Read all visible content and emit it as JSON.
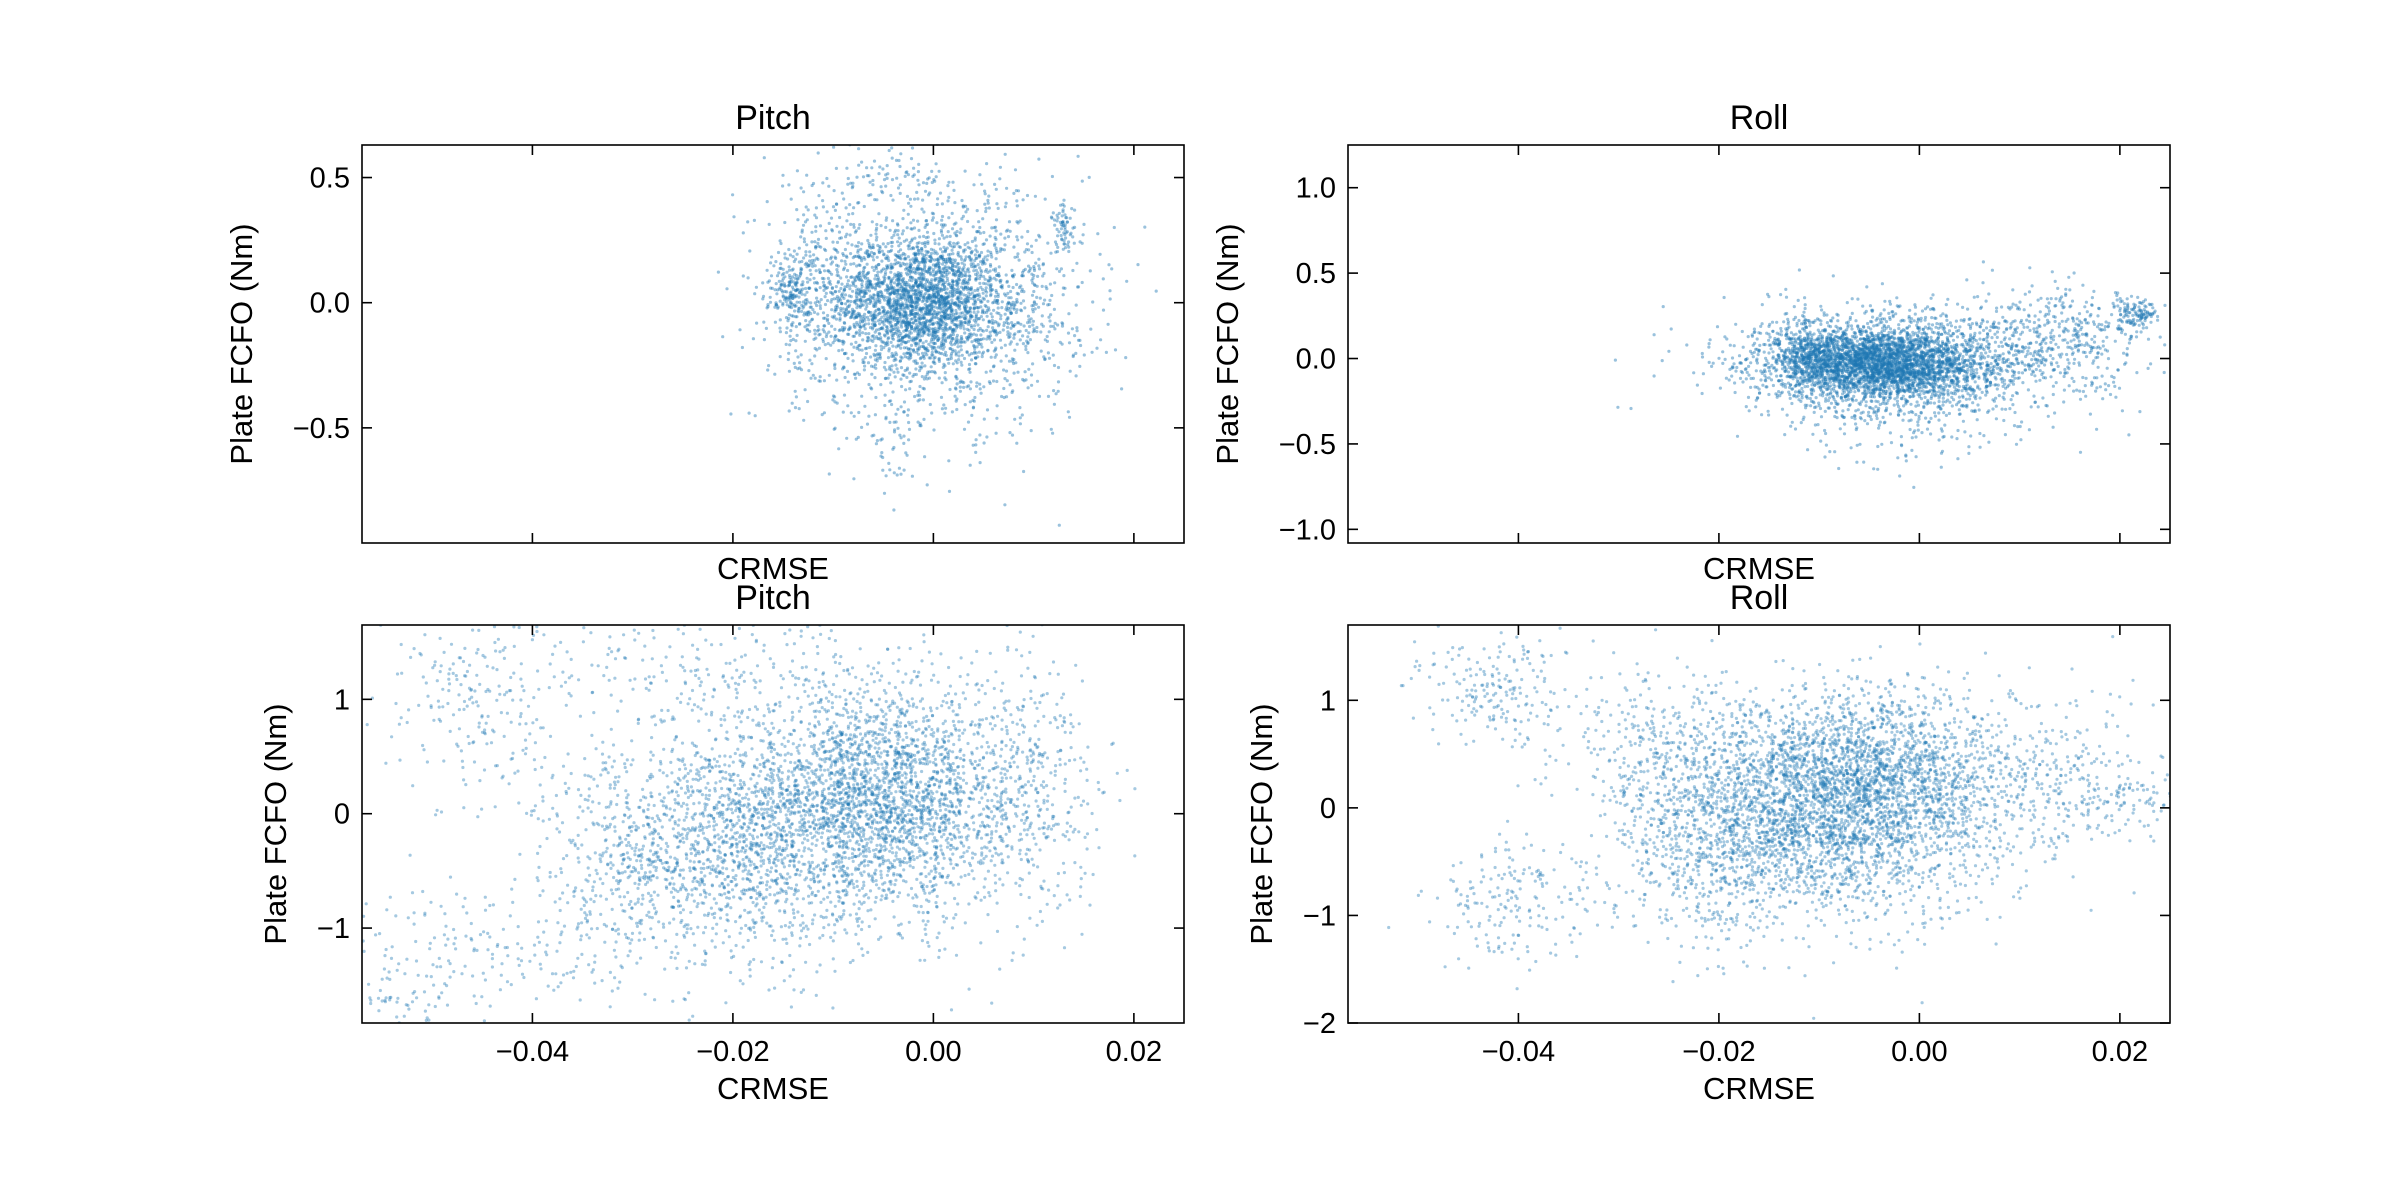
{
  "colors": {
    "marker": "#1f77b4",
    "axes": "#000000",
    "background": "#ffffff"
  },
  "chart_data": [
    {
      "id": "pitch-top",
      "type": "scatter",
      "title": "Pitch",
      "xlabel": "CRMSE",
      "ylabel": "Plate FCFO (Nm)",
      "xlim": [
        -0.057,
        0.025
      ],
      "ylim": [
        -0.96,
        0.63
      ],
      "xticks": [
        -0.04,
        -0.02,
        0.0,
        0.02
      ],
      "xticklabels": [],
      "yticks": [
        -0.5,
        0.0,
        0.5
      ],
      "yticklabels": [
        "−0.5",
        "0.0",
        "0.5"
      ],
      "grid": false,
      "series": [
        {
          "density": "dense",
          "clusters": [
            {
              "cx": -0.0015,
              "cy": 0.0,
              "sx": 0.004,
              "sy": 0.13,
              "n": 1900
            },
            {
              "cx": 0.001,
              "cy": 0.0,
              "sx": 0.007,
              "sy": 0.26,
              "n": 1100
            },
            {
              "cx": -0.011,
              "cy": 0.07,
              "sx": 0.003,
              "sy": 0.22,
              "n": 350
            },
            {
              "cx": -0.014,
              "cy": 0.05,
              "sx": 0.0012,
              "sy": 0.08,
              "n": 180
            },
            {
              "cx": 0.0085,
              "cy": -0.05,
              "sx": 0.003,
              "sy": 0.18,
              "n": 220
            },
            {
              "cx": 0.013,
              "cy": 0.3,
              "sx": 0.0006,
              "sy": 0.05,
              "n": 60
            },
            {
              "cx": -0.004,
              "cy": -0.55,
              "sx": 0.0015,
              "sy": 0.12,
              "n": 40
            },
            {
              "cx": -0.005,
              "cy": 0.5,
              "sx": 0.0025,
              "sy": 0.05,
              "n": 50
            }
          ]
        }
      ]
    },
    {
      "id": "roll-top",
      "type": "scatter",
      "title": "Roll",
      "xlabel": "CRMSE",
      "ylabel": "Plate FCFO (Nm)",
      "xlim": [
        -0.057,
        0.025
      ],
      "ylim": [
        -1.08,
        1.25
      ],
      "xticks": [
        -0.04,
        -0.02,
        0.0,
        0.02
      ],
      "xticklabels": [],
      "yticks": [
        -1.0,
        -0.5,
        0.0,
        0.5,
        1.0
      ],
      "yticklabels": [
        "−1.0",
        "−0.5",
        "0.0",
        "0.5",
        "1.0"
      ],
      "grid": false,
      "series": [
        {
          "density": "dense",
          "clusters": [
            {
              "cx": -0.004,
              "cy": -0.03,
              "sx": 0.005,
              "sy": 0.1,
              "n": 2600
            },
            {
              "cx": -0.001,
              "cy": -0.02,
              "sx": 0.009,
              "sy": 0.17,
              "n": 1500
            },
            {
              "cx": -0.011,
              "cy": 0.02,
              "sx": 0.002,
              "sy": 0.1,
              "n": 300
            },
            {
              "cx": 0.015,
              "cy": 0.12,
              "sx": 0.004,
              "sy": 0.14,
              "n": 300
            },
            {
              "cx": 0.0215,
              "cy": 0.27,
              "sx": 0.0012,
              "sy": 0.05,
              "n": 120
            },
            {
              "cx": -0.002,
              "cy": -0.35,
              "sx": 0.005,
              "sy": 0.15,
              "n": 150
            }
          ]
        }
      ]
    },
    {
      "id": "pitch-bottom",
      "type": "scatter",
      "title": "Pitch",
      "xlabel": "CRMSE",
      "ylabel": "Plate FCFO (Nm)",
      "xlim": [
        -0.057,
        0.025
      ],
      "ylim": [
        -1.83,
        1.65
      ],
      "xticks": [
        -0.04,
        -0.02,
        0.0,
        0.02
      ],
      "xticklabels": [
        "−0.04",
        "−0.02",
        "0.00",
        "0.02"
      ],
      "yticks": [
        -1,
        0,
        1
      ],
      "yticklabels": [
        "−1",
        "0",
        "1"
      ],
      "grid": false,
      "series": [
        {
          "density": "trajectories",
          "clusters": [
            {
              "cx": -0.01,
              "cy": 0.0,
              "sx": 0.01,
              "sy": 0.55,
              "n": 2200
            },
            {
              "cx": -0.004,
              "cy": 0.2,
              "sx": 0.006,
              "sy": 0.45,
              "n": 1300
            },
            {
              "cx": -0.022,
              "cy": -0.4,
              "sx": 0.007,
              "sy": 0.45,
              "n": 700
            },
            {
              "cx": -0.03,
              "cy": -0.6,
              "sx": 0.006,
              "sy": 0.5,
              "n": 260
            },
            {
              "cx": -0.045,
              "cy": 0.9,
              "sx": 0.005,
              "sy": 0.45,
              "n": 200
            },
            {
              "cx": -0.044,
              "cy": -1.2,
              "sx": 0.007,
              "sy": 0.3,
              "n": 150
            },
            {
              "cx": 0.01,
              "cy": 0.3,
              "sx": 0.003,
              "sy": 0.55,
              "n": 250
            },
            {
              "cx": -0.025,
              "cy": 1.3,
              "sx": 0.012,
              "sy": 0.2,
              "n": 200
            },
            {
              "cx": -0.053,
              "cy": -1.6,
              "sx": 0.003,
              "sy": 0.15,
              "n": 50
            }
          ]
        }
      ]
    },
    {
      "id": "roll-bottom",
      "type": "scatter",
      "title": "Roll",
      "xlabel": "CRMSE",
      "ylabel": "Plate FCFO (Nm)",
      "xlim": [
        -0.057,
        0.025
      ],
      "ylim": [
        -2.0,
        1.7
      ],
      "xticks": [
        -0.04,
        -0.02,
        0.0,
        0.02
      ],
      "xticklabels": [
        "−0.04",
        "−0.02",
        "0.00",
        "0.02"
      ],
      "yticks": [
        -2,
        -1,
        0,
        1
      ],
      "yticklabels": [
        "−2",
        "−1",
        "0",
        "1"
      ],
      "grid": false,
      "series": [
        {
          "density": "trajectories",
          "clusters": [
            {
              "cx": -0.009,
              "cy": 0.0,
              "sx": 0.009,
              "sy": 0.5,
              "n": 2600
            },
            {
              "cx": -0.004,
              "cy": 0.3,
              "sx": 0.006,
              "sy": 0.4,
              "n": 1200
            },
            {
              "cx": -0.019,
              "cy": -0.3,
              "sx": 0.006,
              "sy": 0.5,
              "n": 800
            },
            {
              "cx": -0.042,
              "cy": 1.1,
              "sx": 0.004,
              "sy": 0.25,
              "n": 200
            },
            {
              "cx": -0.04,
              "cy": -0.9,
              "sx": 0.004,
              "sy": 0.3,
              "n": 180
            },
            {
              "cx": 0.013,
              "cy": 0.3,
              "sx": 0.005,
              "sy": 0.4,
              "n": 250
            },
            {
              "cx": 0.021,
              "cy": 0.1,
              "sx": 0.003,
              "sy": 0.12,
              "n": 80
            },
            {
              "cx": -0.025,
              "cy": 0.6,
              "sx": 0.005,
              "sy": 0.35,
              "n": 250
            }
          ]
        }
      ]
    }
  ]
}
